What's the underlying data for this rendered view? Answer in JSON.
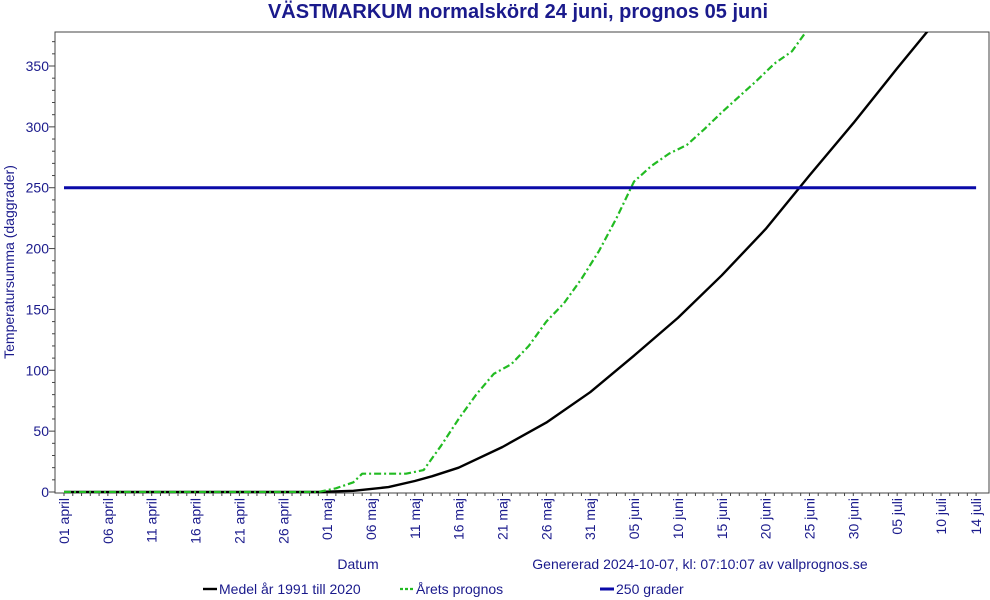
{
  "chart_data": {
    "type": "line",
    "title": "VÄSTMARKUM normalskörd 24 juni, prognos 05 juni",
    "xlabel": "Datum",
    "ylabel": "Temperatursumma (daggrader)",
    "footer": "Genererad 2024-10-07, kl: 07:10:07 av vallprognos.se",
    "ylim": [
      0,
      380
    ],
    "xlim": [
      "2024-04-01",
      "2024-07-14"
    ],
    "x_tick_labels": [
      "01 april",
      "06 april",
      "11 april",
      "16 april",
      "21 april",
      "26 april",
      "01 maj",
      "06 maj",
      "11 maj",
      "16 maj",
      "21 maj",
      "26 maj",
      "31 maj",
      "05 juni",
      "10 juni",
      "15 juni",
      "20 juni",
      "25 juni",
      "30 juni",
      "05 juli",
      "10 juli",
      "14 juli"
    ],
    "y_ticks": [
      0,
      50,
      100,
      150,
      200,
      250,
      300,
      350
    ],
    "grid": false,
    "legend_position": "bottom",
    "series": [
      {
        "name": "Medel år 1991 till 2020",
        "color": "#000000",
        "style": "solid",
        "x": [
          "2024-04-01",
          "2024-04-30",
          "2024-05-04",
          "2024-05-08",
          "2024-05-11",
          "2024-05-13",
          "2024-05-16",
          "2024-05-21",
          "2024-05-26",
          "2024-05-31",
          "2024-06-05",
          "2024-06-10",
          "2024-06-15",
          "2024-06-20",
          "2024-06-25",
          "2024-06-30",
          "2024-07-05",
          "2024-07-10",
          "2024-07-12"
        ],
        "values": [
          0,
          0,
          1,
          4,
          9,
          13,
          20,
          37,
          57,
          82,
          112,
          143,
          178,
          216,
          260,
          303,
          348,
          392,
          410
        ]
      },
      {
        "name": "Årets prognos",
        "color": "#22bb22",
        "style": "dashed",
        "x": [
          "2024-04-01",
          "2024-04-30",
          "2024-05-02",
          "2024-05-04",
          "2024-05-05",
          "2024-05-08",
          "2024-05-10",
          "2024-05-12",
          "2024-05-14",
          "2024-05-16",
          "2024-05-18",
          "2024-05-20",
          "2024-05-22",
          "2024-05-24",
          "2024-05-26",
          "2024-05-28",
          "2024-05-30",
          "2024-06-01",
          "2024-06-03",
          "2024-06-05",
          "2024-06-07",
          "2024-06-09",
          "2024-06-11",
          "2024-06-13",
          "2024-06-15",
          "2024-06-17",
          "2024-06-19",
          "2024-06-21",
          "2024-06-23",
          "2024-06-25",
          "2024-06-26"
        ],
        "values": [
          0,
          0,
          3,
          8,
          15,
          15,
          15,
          18,
          38,
          60,
          80,
          97,
          105,
          120,
          140,
          155,
          175,
          198,
          225,
          255,
          268,
          278,
          285,
          298,
          312,
          325,
          338,
          352,
          362,
          382,
          392
        ]
      },
      {
        "name": "250 grader",
        "color": "#0a0aa8",
        "style": "solid",
        "x": [
          "2024-04-01",
          "2024-07-14"
        ],
        "values": [
          250,
          250
        ]
      }
    ]
  }
}
